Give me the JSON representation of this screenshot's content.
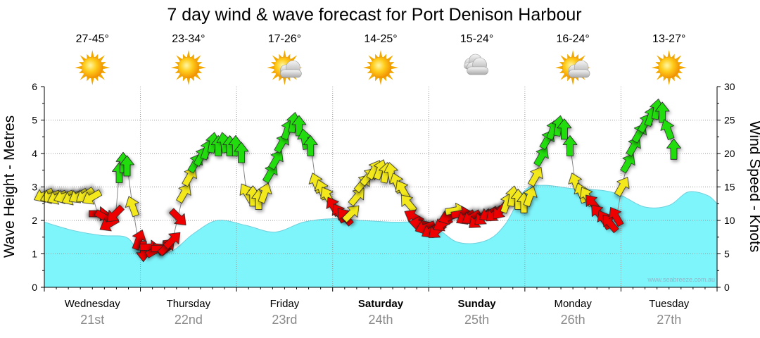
{
  "chart_data": {
    "type": "area",
    "title": "7 day wind & wave forecast for Port Denison Harbour",
    "ylabel_left": "Wave Height - Metres",
    "ylabel_right": "Wind Speed - Knots",
    "y_left_range": [
      0,
      6
    ],
    "y_left_ticks": [
      "0",
      "1",
      "2",
      "3",
      "4",
      "5",
      "6"
    ],
    "y_right_range": [
      0,
      30
    ],
    "y_right_ticks": [
      "0",
      "5",
      "10",
      "15",
      "20",
      "25",
      "30"
    ],
    "watermark": "www.seabreeze.com.au",
    "grid": true,
    "days": [
      {
        "name": "Wednesday",
        "date": "21st",
        "bold": false,
        "temp": "27-45°",
        "weather_icon": "sun-icon"
      },
      {
        "name": "Thursday",
        "date": "22nd",
        "bold": false,
        "temp": "23-34°",
        "weather_icon": "sun-icon"
      },
      {
        "name": "Friday",
        "date": "23rd",
        "bold": false,
        "temp": "17-26°",
        "weather_icon": "sun-cloud-icon"
      },
      {
        "name": "Saturday",
        "date": "24th",
        "bold": true,
        "temp": "14-25°",
        "weather_icon": "sun-icon"
      },
      {
        "name": "Sunday",
        "date": "25th",
        "bold": true,
        "temp": "15-24°",
        "weather_icon": "cloud-icon"
      },
      {
        "name": "Monday",
        "date": "26th",
        "bold": false,
        "temp": "16-24°",
        "weather_icon": "sun-cloud-icon"
      },
      {
        "name": "Tuesday",
        "date": "27th",
        "bold": false,
        "temp": "13-27°",
        "weather_icon": "sun-icon"
      }
    ],
    "wave_series": {
      "x_days": [
        0,
        0.3,
        0.6,
        0.85,
        1.0,
        1.3,
        1.55,
        1.8,
        2.1,
        2.4,
        2.7,
        3.0,
        3.3,
        3.6,
        4.0,
        4.3,
        4.6,
        4.8,
        5.0,
        5.2,
        5.5,
        5.8,
        6.0,
        6.25,
        6.5,
        6.7,
        6.9,
        7.0
      ],
      "values": [
        1.95,
        1.7,
        1.55,
        1.5,
        1.1,
        1.05,
        1.6,
        2.0,
        1.85,
        1.65,
        1.95,
        2.05,
        2.0,
        1.95,
        1.9,
        1.35,
        1.4,
        1.9,
        2.9,
        3.05,
        2.95,
        2.9,
        2.75,
        2.4,
        2.45,
        2.85,
        2.75,
        2.5
      ]
    },
    "wind_series": {
      "unit": "knots",
      "colors": {
        "light": "#ee0000",
        "moderate": "#f2e81c",
        "strong": "#22dd11"
      },
      "points": [
        {
          "t": 0.0,
          "v": 13.8,
          "dir": 245,
          "c": "moderate"
        },
        {
          "t": 0.07,
          "v": 13.6,
          "dir": 250,
          "c": "moderate"
        },
        {
          "t": 0.14,
          "v": 13.5,
          "dir": 245,
          "c": "moderate"
        },
        {
          "t": 0.21,
          "v": 13.6,
          "dir": 250,
          "c": "moderate"
        },
        {
          "t": 0.29,
          "v": 13.4,
          "dir": 245,
          "c": "moderate"
        },
        {
          "t": 0.36,
          "v": 13.7,
          "dir": 240,
          "c": "moderate"
        },
        {
          "t": 0.43,
          "v": 13.8,
          "dir": 235,
          "c": "moderate"
        },
        {
          "t": 0.5,
          "v": 13.5,
          "dir": 240,
          "c": "moderate"
        },
        {
          "t": 0.56,
          "v": 11.0,
          "dir": 90,
          "c": "light"
        },
        {
          "t": 0.62,
          "v": 10.5,
          "dir": 120,
          "c": "light"
        },
        {
          "t": 0.68,
          "v": 9.5,
          "dir": 240,
          "c": "light"
        },
        {
          "t": 0.74,
          "v": 11.0,
          "dir": 225,
          "c": "light"
        },
        {
          "t": 0.78,
          "v": 17.0,
          "dir": 0,
          "c": "strong"
        },
        {
          "t": 0.82,
          "v": 18.5,
          "dir": 0,
          "c": "strong"
        },
        {
          "t": 0.86,
          "v": 18.0,
          "dir": 0,
          "c": "strong"
        },
        {
          "t": 0.92,
          "v": 12.0,
          "dir": 340,
          "c": "moderate"
        },
        {
          "t": 0.98,
          "v": 7.0,
          "dir": 20,
          "c": "light"
        },
        {
          "t": 1.03,
          "v": 5.5,
          "dir": 180,
          "c": "light"
        },
        {
          "t": 1.09,
          "v": 6.0,
          "dir": 90,
          "c": "light"
        },
        {
          "t": 1.15,
          "v": 5.5,
          "dir": 60,
          "c": "light"
        },
        {
          "t": 1.21,
          "v": 5.8,
          "dir": 90,
          "c": "light"
        },
        {
          "t": 1.27,
          "v": 6.0,
          "dir": 45,
          "c": "light"
        },
        {
          "t": 1.33,
          "v": 7.0,
          "dir": 45,
          "c": "light"
        },
        {
          "t": 1.39,
          "v": 10.5,
          "dir": 135,
          "c": "light"
        },
        {
          "t": 1.45,
          "v": 14.0,
          "dir": 30,
          "c": "moderate"
        },
        {
          "t": 1.51,
          "v": 16.5,
          "dir": 30,
          "c": "moderate"
        },
        {
          "t": 1.57,
          "v": 18.5,
          "dir": 30,
          "c": "strong"
        },
        {
          "t": 1.63,
          "v": 19.5,
          "dir": 30,
          "c": "strong"
        },
        {
          "t": 1.69,
          "v": 20.5,
          "dir": 20,
          "c": "strong"
        },
        {
          "t": 1.75,
          "v": 21.5,
          "dir": 10,
          "c": "strong"
        },
        {
          "t": 1.81,
          "v": 21.0,
          "dir": 0,
          "c": "strong"
        },
        {
          "t": 1.87,
          "v": 21.5,
          "dir": 350,
          "c": "strong"
        },
        {
          "t": 1.93,
          "v": 21.0,
          "dir": 0,
          "c": "strong"
        },
        {
          "t": 1.99,
          "v": 21.0,
          "dir": 0,
          "c": "strong"
        },
        {
          "t": 2.05,
          "v": 20.0,
          "dir": 0,
          "c": "strong"
        },
        {
          "t": 2.11,
          "v": 14.0,
          "dir": 330,
          "c": "moderate"
        },
        {
          "t": 2.17,
          "v": 13.5,
          "dir": 0,
          "c": "moderate"
        },
        {
          "t": 2.23,
          "v": 13.0,
          "dir": 0,
          "c": "moderate"
        },
        {
          "t": 2.29,
          "v": 14.0,
          "dir": 20,
          "c": "moderate"
        },
        {
          "t": 2.35,
          "v": 17.0,
          "dir": 30,
          "c": "strong"
        },
        {
          "t": 2.41,
          "v": 19.0,
          "dir": 30,
          "c": "strong"
        },
        {
          "t": 2.47,
          "v": 21.5,
          "dir": 30,
          "c": "strong"
        },
        {
          "t": 2.53,
          "v": 23.5,
          "dir": 20,
          "c": "strong"
        },
        {
          "t": 2.59,
          "v": 24.5,
          "dir": 10,
          "c": "strong"
        },
        {
          "t": 2.65,
          "v": 24.0,
          "dir": 0,
          "c": "strong"
        },
        {
          "t": 2.71,
          "v": 22.0,
          "dir": 350,
          "c": "strong"
        },
        {
          "t": 2.77,
          "v": 21.0,
          "dir": 0,
          "c": "strong"
        },
        {
          "t": 2.83,
          "v": 15.5,
          "dir": 340,
          "c": "moderate"
        },
        {
          "t": 2.89,
          "v": 14.5,
          "dir": 340,
          "c": "moderate"
        },
        {
          "t": 2.95,
          "v": 13.5,
          "dir": 330,
          "c": "moderate"
        },
        {
          "t": 3.01,
          "v": 12.0,
          "dir": 330,
          "c": "light"
        },
        {
          "t": 3.07,
          "v": 11.0,
          "dir": 330,
          "c": "light"
        },
        {
          "t": 3.13,
          "v": 10.5,
          "dir": 320,
          "c": "light"
        },
        {
          "t": 3.19,
          "v": 11.0,
          "dir": 45,
          "c": "moderate"
        },
        {
          "t": 3.25,
          "v": 13.5,
          "dir": 40,
          "c": "moderate"
        },
        {
          "t": 3.31,
          "v": 15.5,
          "dir": 40,
          "c": "moderate"
        },
        {
          "t": 3.37,
          "v": 16.5,
          "dir": 40,
          "c": "moderate"
        },
        {
          "t": 3.43,
          "v": 17.5,
          "dir": 30,
          "c": "moderate"
        },
        {
          "t": 3.49,
          "v": 17.5,
          "dir": 20,
          "c": "moderate"
        },
        {
          "t": 3.55,
          "v": 17.0,
          "dir": 10,
          "c": "moderate"
        },
        {
          "t": 3.61,
          "v": 17.0,
          "dir": 350,
          "c": "moderate"
        },
        {
          "t": 3.67,
          "v": 15.5,
          "dir": 340,
          "c": "moderate"
        },
        {
          "t": 3.73,
          "v": 14.5,
          "dir": 330,
          "c": "moderate"
        },
        {
          "t": 3.79,
          "v": 12.5,
          "dir": 320,
          "c": "moderate"
        },
        {
          "t": 3.85,
          "v": 10.5,
          "dir": 300,
          "c": "light"
        },
        {
          "t": 3.91,
          "v": 9.5,
          "dir": 280,
          "c": "light"
        },
        {
          "t": 3.97,
          "v": 9.0,
          "dir": 250,
          "c": "light"
        },
        {
          "t": 4.03,
          "v": 8.5,
          "dir": 240,
          "c": "light"
        },
        {
          "t": 4.09,
          "v": 8.5,
          "dir": 230,
          "c": "light"
        },
        {
          "t": 4.15,
          "v": 9.5,
          "dir": 240,
          "c": "light"
        },
        {
          "t": 4.21,
          "v": 10.5,
          "dir": 250,
          "c": "light"
        },
        {
          "t": 4.27,
          "v": 11.5,
          "dir": 80,
          "c": "moderate"
        },
        {
          "t": 4.33,
          "v": 11.0,
          "dir": 80,
          "c": "light"
        },
        {
          "t": 4.39,
          "v": 10.5,
          "dir": 240,
          "c": "light"
        },
        {
          "t": 4.45,
          "v": 10.5,
          "dir": 240,
          "c": "light"
        },
        {
          "t": 4.51,
          "v": 10.0,
          "dir": 230,
          "c": "light"
        },
        {
          "t": 4.57,
          "v": 10.5,
          "dir": 230,
          "c": "light"
        },
        {
          "t": 4.63,
          "v": 11.0,
          "dir": 240,
          "c": "light"
        },
        {
          "t": 4.69,
          "v": 11.0,
          "dir": 230,
          "c": "light"
        },
        {
          "t": 4.75,
          "v": 11.5,
          "dir": 220,
          "c": "light"
        },
        {
          "t": 4.81,
          "v": 12.5,
          "dir": 20,
          "c": "moderate"
        },
        {
          "t": 4.87,
          "v": 13.5,
          "dir": 10,
          "c": "moderate"
        },
        {
          "t": 4.93,
          "v": 13.0,
          "dir": 0,
          "c": "moderate"
        },
        {
          "t": 4.99,
          "v": 12.5,
          "dir": 0,
          "c": "moderate"
        },
        {
          "t": 5.05,
          "v": 13.5,
          "dir": 20,
          "c": "moderate"
        },
        {
          "t": 5.11,
          "v": 16.5,
          "dir": 30,
          "c": "moderate"
        },
        {
          "t": 5.17,
          "v": 19.5,
          "dir": 30,
          "c": "strong"
        },
        {
          "t": 5.23,
          "v": 22.0,
          "dir": 30,
          "c": "strong"
        },
        {
          "t": 5.29,
          "v": 23.5,
          "dir": 20,
          "c": "strong"
        },
        {
          "t": 5.35,
          "v": 24.0,
          "dir": 10,
          "c": "strong"
        },
        {
          "t": 5.41,
          "v": 23.5,
          "dir": 0,
          "c": "strong"
        },
        {
          "t": 5.47,
          "v": 21.0,
          "dir": 0,
          "c": "strong"
        },
        {
          "t": 5.53,
          "v": 15.5,
          "dir": 340,
          "c": "moderate"
        },
        {
          "t": 5.59,
          "v": 14.0,
          "dir": 340,
          "c": "moderate"
        },
        {
          "t": 5.65,
          "v": 13.5,
          "dir": 330,
          "c": "moderate"
        },
        {
          "t": 5.71,
          "v": 12.5,
          "dir": 320,
          "c": "light"
        },
        {
          "t": 5.77,
          "v": 11.0,
          "dir": 320,
          "c": "light"
        },
        {
          "t": 5.83,
          "v": 10.0,
          "dir": 330,
          "c": "light"
        },
        {
          "t": 5.89,
          "v": 9.5,
          "dir": 320,
          "c": "light"
        },
        {
          "t": 5.95,
          "v": 10.5,
          "dir": 330,
          "c": "light"
        },
        {
          "t": 6.01,
          "v": 15.0,
          "dir": 30,
          "c": "moderate"
        },
        {
          "t": 6.07,
          "v": 18.5,
          "dir": 30,
          "c": "strong"
        },
        {
          "t": 6.13,
          "v": 21.0,
          "dir": 30,
          "c": "strong"
        },
        {
          "t": 6.19,
          "v": 23.0,
          "dir": 30,
          "c": "strong"
        },
        {
          "t": 6.25,
          "v": 24.5,
          "dir": 30,
          "c": "strong"
        },
        {
          "t": 6.31,
          "v": 25.5,
          "dir": 20,
          "c": "strong"
        },
        {
          "t": 6.37,
          "v": 26.5,
          "dir": 10,
          "c": "strong"
        },
        {
          "t": 6.43,
          "v": 26.0,
          "dir": 0,
          "c": "strong"
        },
        {
          "t": 6.49,
          "v": 23.5,
          "dir": 340,
          "c": "strong"
        },
        {
          "t": 6.55,
          "v": 20.5,
          "dir": 0,
          "c": "strong"
        }
      ]
    }
  }
}
